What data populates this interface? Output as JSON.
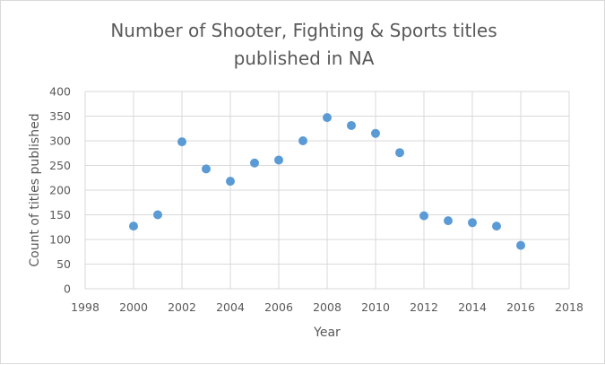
{
  "chart_data": {
    "type": "scatter",
    "title": "Number of Shooter, Fighting & Sports titles published in NA",
    "title_lines": [
      "Number of Shooter, Fighting & Sports titles",
      "published in NA"
    ],
    "xlabel": "Year",
    "ylabel": "Count of titles published",
    "xlim": [
      1998,
      2018
    ],
    "ylim": [
      0,
      400
    ],
    "x_ticks": [
      "1998",
      "2000",
      "2002",
      "2004",
      "2006",
      "2008",
      "2010",
      "2012",
      "2014",
      "2016",
      "2018"
    ],
    "y_ticks": [
      "0",
      "50",
      "100",
      "150",
      "200",
      "250",
      "300",
      "350",
      "400"
    ],
    "grid": true,
    "legend": "none",
    "marker_color": "#5b9bd5",
    "points": [
      {
        "x": 2000,
        "y": 127
      },
      {
        "x": 2001,
        "y": 150
      },
      {
        "x": 2002,
        "y": 298
      },
      {
        "x": 2003,
        "y": 243
      },
      {
        "x": 2004,
        "y": 218
      },
      {
        "x": 2005,
        "y": 255
      },
      {
        "x": 2006,
        "y": 261
      },
      {
        "x": 2007,
        "y": 300
      },
      {
        "x": 2008,
        "y": 347
      },
      {
        "x": 2009,
        "y": 331
      },
      {
        "x": 2010,
        "y": 315
      },
      {
        "x": 2011,
        "y": 276
      },
      {
        "x": 2012,
        "y": 148
      },
      {
        "x": 2013,
        "y": 138
      },
      {
        "x": 2014,
        "y": 134
      },
      {
        "x": 2015,
        "y": 127
      },
      {
        "x": 2016,
        "y": 88
      }
    ]
  }
}
